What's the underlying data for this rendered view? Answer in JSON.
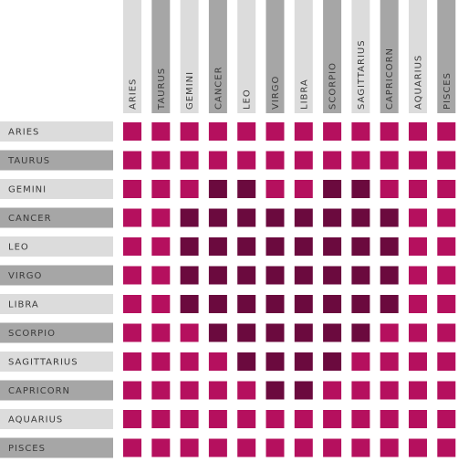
{
  "chart_data": {
    "type": "heatmap",
    "signs": [
      "ARIES",
      "TAURUS",
      "GEMINI",
      "CANCER",
      "LEO",
      "VIRGO",
      "LIBRA",
      "SCORPIO",
      "SAGITTARIUS",
      "CAPRICORN",
      "AQUARIUS",
      "PISCES"
    ],
    "matrix": [
      [
        0,
        0,
        0,
        0,
        0,
        0,
        0,
        0,
        0,
        0,
        0,
        0
      ],
      [
        0,
        0,
        0,
        0,
        0,
        0,
        0,
        0,
        0,
        0,
        0,
        0
      ],
      [
        0,
        0,
        0,
        1,
        1,
        0,
        0,
        1,
        1,
        0,
        0,
        0
      ],
      [
        0,
        0,
        1,
        1,
        1,
        1,
        1,
        1,
        1,
        1,
        0,
        0
      ],
      [
        0,
        0,
        1,
        1,
        1,
        1,
        1,
        1,
        1,
        1,
        0,
        0
      ],
      [
        0,
        0,
        1,
        1,
        1,
        1,
        1,
        1,
        1,
        1,
        0,
        0
      ],
      [
        0,
        0,
        1,
        1,
        1,
        1,
        1,
        1,
        1,
        1,
        0,
        0
      ],
      [
        0,
        0,
        0,
        1,
        1,
        1,
        1,
        1,
        1,
        0,
        0,
        0
      ],
      [
        0,
        0,
        0,
        0,
        1,
        1,
        1,
        1,
        0,
        0,
        0,
        0
      ],
      [
        0,
        0,
        0,
        0,
        0,
        1,
        1,
        0,
        0,
        0,
        0,
        0
      ],
      [
        0,
        0,
        0,
        0,
        0,
        0,
        0,
        0,
        0,
        0,
        0,
        0
      ],
      [
        0,
        0,
        0,
        0,
        0,
        0,
        0,
        0,
        0,
        0,
        0,
        0
      ]
    ],
    "colors": {
      "level_0": "#b5105e",
      "level_1": "#6b0a3e",
      "label_bg_light": "#dcdcdc",
      "label_bg_dark": "#a6a6a6",
      "label_text": "#3a3a3a"
    }
  }
}
